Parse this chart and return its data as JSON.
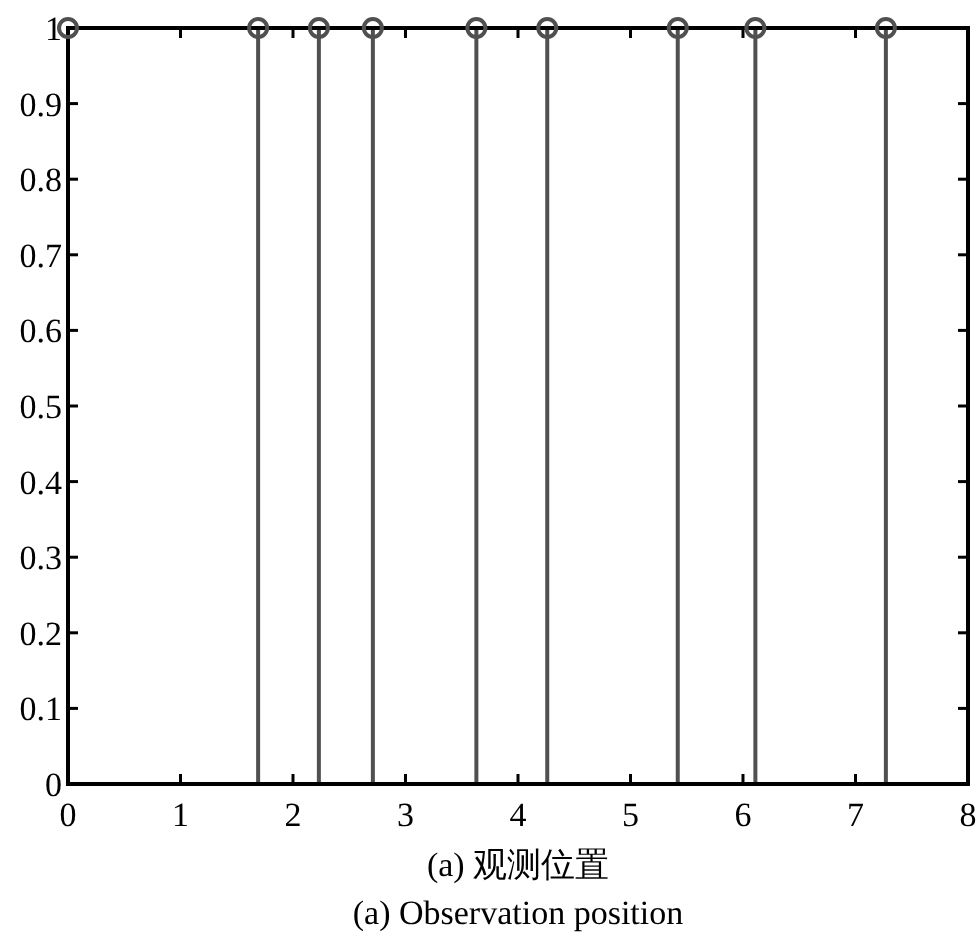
{
  "chart_data": {
    "type": "lollipop",
    "xlabel": "(a) 观测位置",
    "annotations": [
      "(a) Observation position"
    ],
    "x": [
      0,
      1.69,
      2.23,
      2.71,
      3.63,
      4.26,
      5.42,
      6.11,
      7.27
    ],
    "values": [
      1,
      1,
      1,
      1,
      1,
      1,
      1,
      1,
      1
    ],
    "color": "#505050",
    "marker": "circle",
    "xlim": [
      0,
      8
    ],
    "xticks": [
      0,
      1,
      2,
      3,
      4,
      5,
      6,
      7,
      8
    ],
    "ylim": [
      0,
      1
    ],
    "yticks": [
      0,
      0.1,
      0.2,
      0.3,
      0.4,
      0.5,
      0.6,
      0.7,
      0.8,
      0.9,
      1
    ],
    "grid": false
  }
}
